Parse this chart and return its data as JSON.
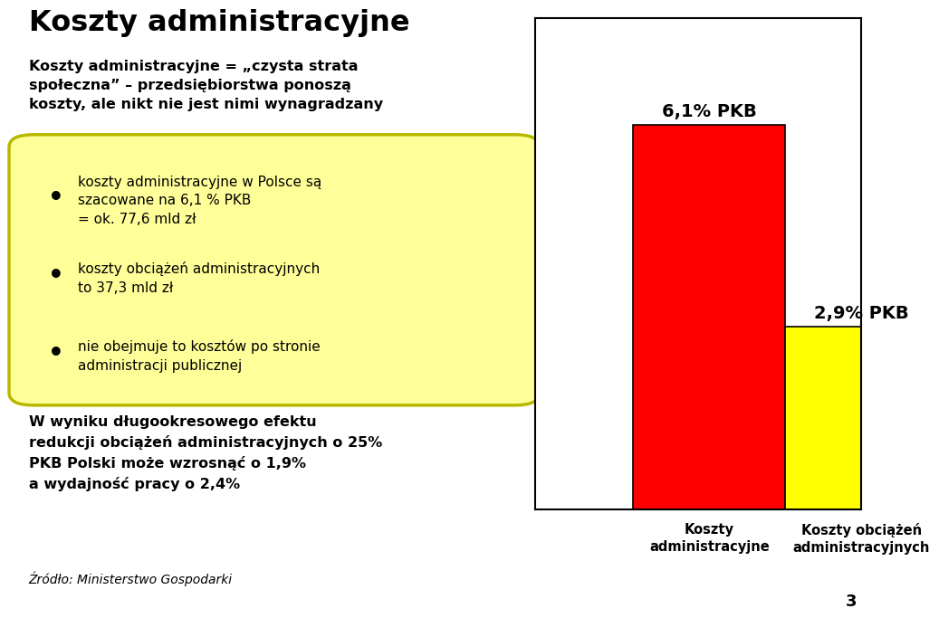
{
  "title": "Koszty administracyjne",
  "subtitle": "Koszty administracyjne = „czysta strata\nspołeczna” – przedsiębiorstwa ponoszą\nkoszty, ale nikt nie jest nimi wynagradzany",
  "bullet_box_items": [
    "koszty administracyjne w Polsce są\nszacowane na 6,1 % PKB\n= ok. 77,6 mld zł",
    "koszty obciążeń administracyjnych\nto 37,3 mld zł",
    "nie obejmuje to kosztów po stronie\nadministracji publicznej"
  ],
  "bottom_text": "W wyniku długookresowego efektu\nredukcji obciążeń administracyjnych o 25%\nPKB Polski może wzrosnąć o 1,9%\na wydajność pracy o 2,4%",
  "source_text": "Źródło: Ministerstwo Gospodarki",
  "bar_categories": [
    "Koszty\nadministracyjne",
    "Koszty obciążeń\nadministracyjnych"
  ],
  "bar_values": [
    6.1,
    2.9
  ],
  "bar_labels": [
    "6,1% PKB",
    "2,9% PKB"
  ],
  "bar_colors": [
    "#ff0000",
    "#ffff00"
  ],
  "background_color": "#ffffff",
  "box_fill_color": "#ffff99",
  "box_edge_color": "#b8b800",
  "page_number": "3"
}
